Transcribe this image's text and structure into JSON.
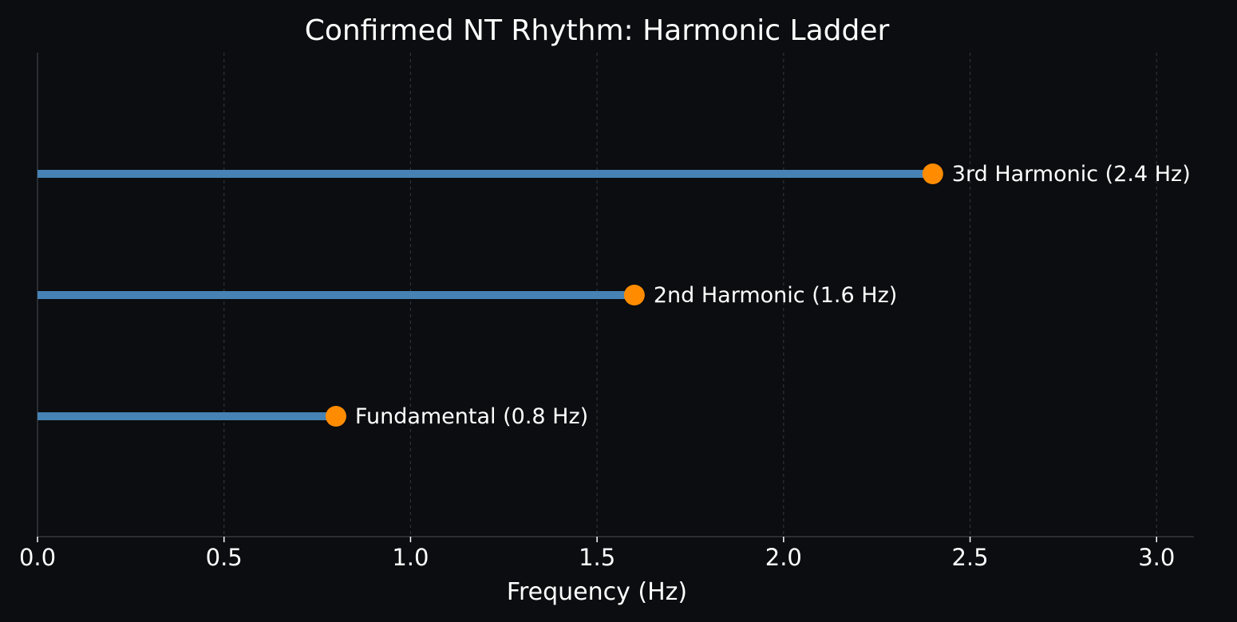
{
  "chart_data": {
    "type": "lollipop",
    "title": "Confirmed NT Rhythm: Harmonic Ladder",
    "xlabel": "Frequency (Hz)",
    "ylabel": "",
    "xlim": [
      0,
      3.1
    ],
    "xticks": [
      0.0,
      0.5,
      1.0,
      1.5,
      2.0,
      2.5,
      3.0
    ],
    "xtick_labels": [
      "0.0",
      "0.5",
      "1.0",
      "1.5",
      "2.0",
      "2.5",
      "3.0"
    ],
    "grid": "x-dashed",
    "points": [
      {
        "label": "Fundamental (0.8 Hz)",
        "value": 0.8
      },
      {
        "label": "2nd Harmonic (1.6 Hz)",
        "value": 1.6
      },
      {
        "label": "3rd Harmonic (2.4 Hz)",
        "value": 2.4
      }
    ],
    "colors": {
      "background": "#0b0d10",
      "stem": "#4682b4",
      "marker": "#ff8c00",
      "grid": "#2e3238",
      "axis": "#2a2e33",
      "text": "#ffffff"
    }
  }
}
